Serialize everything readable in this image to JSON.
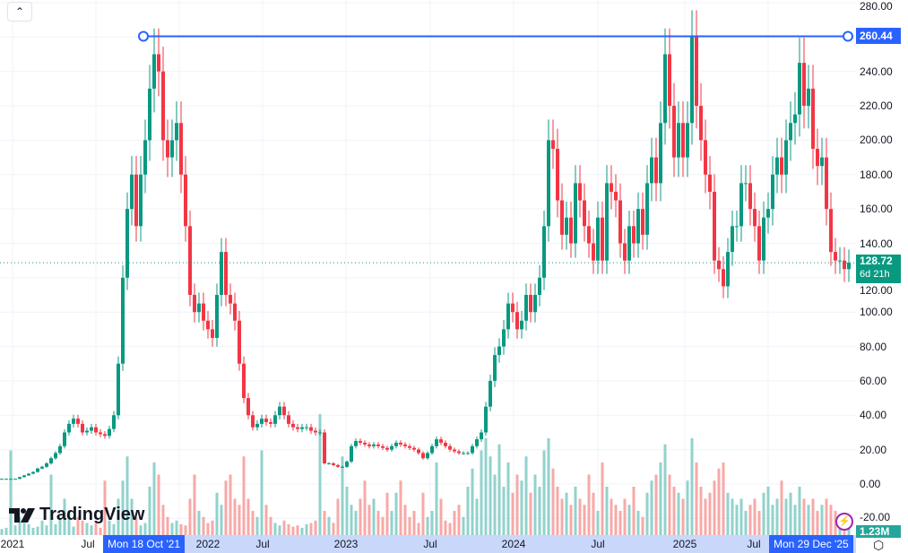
{
  "toolbar": {
    "collapse_icon": "chevron-up-icon",
    "collapse_glyph": "⌃"
  },
  "logo": {
    "text": "TradingView"
  },
  "colors": {
    "up": "#089981",
    "down": "#f23645",
    "up_volume": "#92d2cc",
    "down_volume": "#f7a9a7",
    "horizontal_line": "#2962ff",
    "grid": "#f0f3fa"
  },
  "horizontal_line": {
    "price": 260.44,
    "label": "260.44"
  },
  "last_price": {
    "label": "128.72",
    "countdown": "6d 21h"
  },
  "volume": {
    "label": "1.23M"
  },
  "crosshair_labels": {
    "start": "Mon 18 Oct '21",
    "end": "Mon 29 Dec '25"
  },
  "icons": {
    "alert": "lightning-icon",
    "settings": "settings-hex-icon"
  },
  "chart_data": {
    "type": "candlestick",
    "ylim": [
      -20,
      280
    ],
    "grid": true,
    "y_ticks": [
      "280.00",
      "260.00",
      "240.00",
      "220.00",
      "200.00",
      "180.00",
      "160.00",
      "140.00",
      "120.00",
      "100.00",
      "80.00",
      "60.00",
      "40.00",
      "20.00",
      "0.00",
      "-20.00"
    ],
    "x_ticks": [
      "2021",
      "Jul",
      "2022",
      "Jul",
      "2023",
      "Jul",
      "2024",
      "Jul",
      "2025",
      "Jul"
    ],
    "close": [
      3,
      3,
      3,
      3,
      4,
      5,
      6,
      7,
      9,
      10,
      12,
      15,
      18,
      22,
      30,
      35,
      38,
      35,
      30,
      31,
      33,
      30,
      29,
      28,
      32,
      40,
      70,
      120,
      160,
      180,
      150,
      180,
      200,
      230,
      250,
      240,
      200,
      190,
      200,
      210,
      180,
      150,
      110,
      100,
      105,
      95,
      90,
      85,
      110,
      135,
      110,
      105,
      95,
      70,
      50,
      40,
      33,
      35,
      38,
      36,
      35,
      40,
      45,
      40,
      35,
      33,
      32,
      33,
      33,
      31,
      30,
      30,
      12,
      12,
      11,
      10,
      10,
      13,
      22,
      25,
      24,
      23,
      22,
      23,
      22,
      21,
      20,
      22,
      24,
      23,
      22,
      21,
      20,
      18,
      15,
      18,
      22,
      26,
      24,
      22,
      20,
      19,
      18,
      18,
      18,
      22,
      26,
      30,
      45,
      60,
      75,
      80,
      90,
      105,
      100,
      90,
      95,
      110,
      100,
      110,
      120,
      150,
      200,
      195,
      165,
      145,
      155,
      140,
      175,
      165,
      150,
      140,
      130,
      155,
      130,
      175,
      170,
      165,
      140,
      130,
      150,
      140,
      160,
      145,
      175,
      190,
      175,
      210,
      250,
      220,
      190,
      210,
      190,
      210,
      260,
      220,
      200,
      180,
      170,
      130,
      125,
      115,
      135,
      150,
      150,
      175,
      175,
      160,
      150,
      130,
      155,
      160,
      180,
      190,
      180,
      200,
      210,
      215,
      245,
      220,
      230,
      195,
      185,
      190,
      160,
      135,
      130,
      130,
      125,
      128.72
    ],
    "volume_millions": [
      0.5,
      0.6,
      7.0,
      0.8,
      1.5,
      1.0,
      0.9,
      0.6,
      0.7,
      1.2,
      0.8,
      5.0,
      0.9,
      1.4,
      3.0,
      2.0,
      0.7,
      1.5,
      1.2,
      1.0,
      0.8,
      1.0,
      0.6,
      4.5,
      1.2,
      0.9,
      3.0,
      4.5,
      6.5,
      3.0,
      1.5,
      0.8,
      1.0,
      4.0,
      6.0,
      5.0,
      2.5,
      1.5,
      1.0,
      1.2,
      0.9,
      0.8,
      3.0,
      5.0,
      2.0,
      1.5,
      1.0,
      1.2,
      3.5,
      2.5,
      4.5,
      5.0,
      3.0,
      2.5,
      6.5,
      3.0,
      2.0,
      1.5,
      7.0,
      2.5,
      1.5,
      1.0,
      0.8,
      1.2,
      0.9,
      0.7,
      0.8,
      0.6,
      0.9,
      1.0,
      1.2,
      10.0,
      2.0,
      1.5,
      1.0,
      3.0,
      6.5,
      4.0,
      2.5,
      2.0,
      3.0,
      4.5,
      2.5,
      3.0,
      2.0,
      1.5,
      3.5,
      2.0,
      3.5,
      4.5,
      2.5,
      1.5,
      2.0,
      1.0,
      3.5,
      1.5,
      2.0,
      6.0,
      3.0,
      1.2,
      1.0,
      2.0,
      2.5,
      1.5,
      4.0,
      5.5,
      3.0,
      7.0,
      8.0,
      6.5,
      5.0,
      7.5,
      4.0,
      6.0,
      3.5,
      5.0,
      4.5,
      6.5,
      3.5,
      5.0,
      4.0,
      7.0,
      8.0,
      5.5,
      4.0,
      3.0,
      3.5,
      2.5,
      4.0,
      3.0,
      2.5,
      5.0,
      3.5,
      2.0,
      6.0,
      4.0,
      3.0,
      2.5,
      2.0,
      3.0,
      2.5,
      4.0,
      2.0,
      1.5,
      3.5,
      4.5,
      5.0,
      6.0,
      7.5,
      5.0,
      4.0,
      3.5,
      3.0,
      4.5,
      8.0,
      6.0,
      4.0,
      3.0,
      3.5,
      4.5,
      5.5,
      6.0,
      3.5,
      3.0,
      2.5,
      3.0,
      2.0,
      2.5,
      3.0,
      2.0,
      3.5,
      4.0,
      2.5,
      3.0,
      4.5,
      3.0,
      3.5,
      2.5,
      4.0,
      3.0,
      2.5,
      3.0,
      2.0,
      2.5,
      3.0,
      2.5,
      2.0,
      1.5,
      1.8,
      1.23
    ]
  }
}
